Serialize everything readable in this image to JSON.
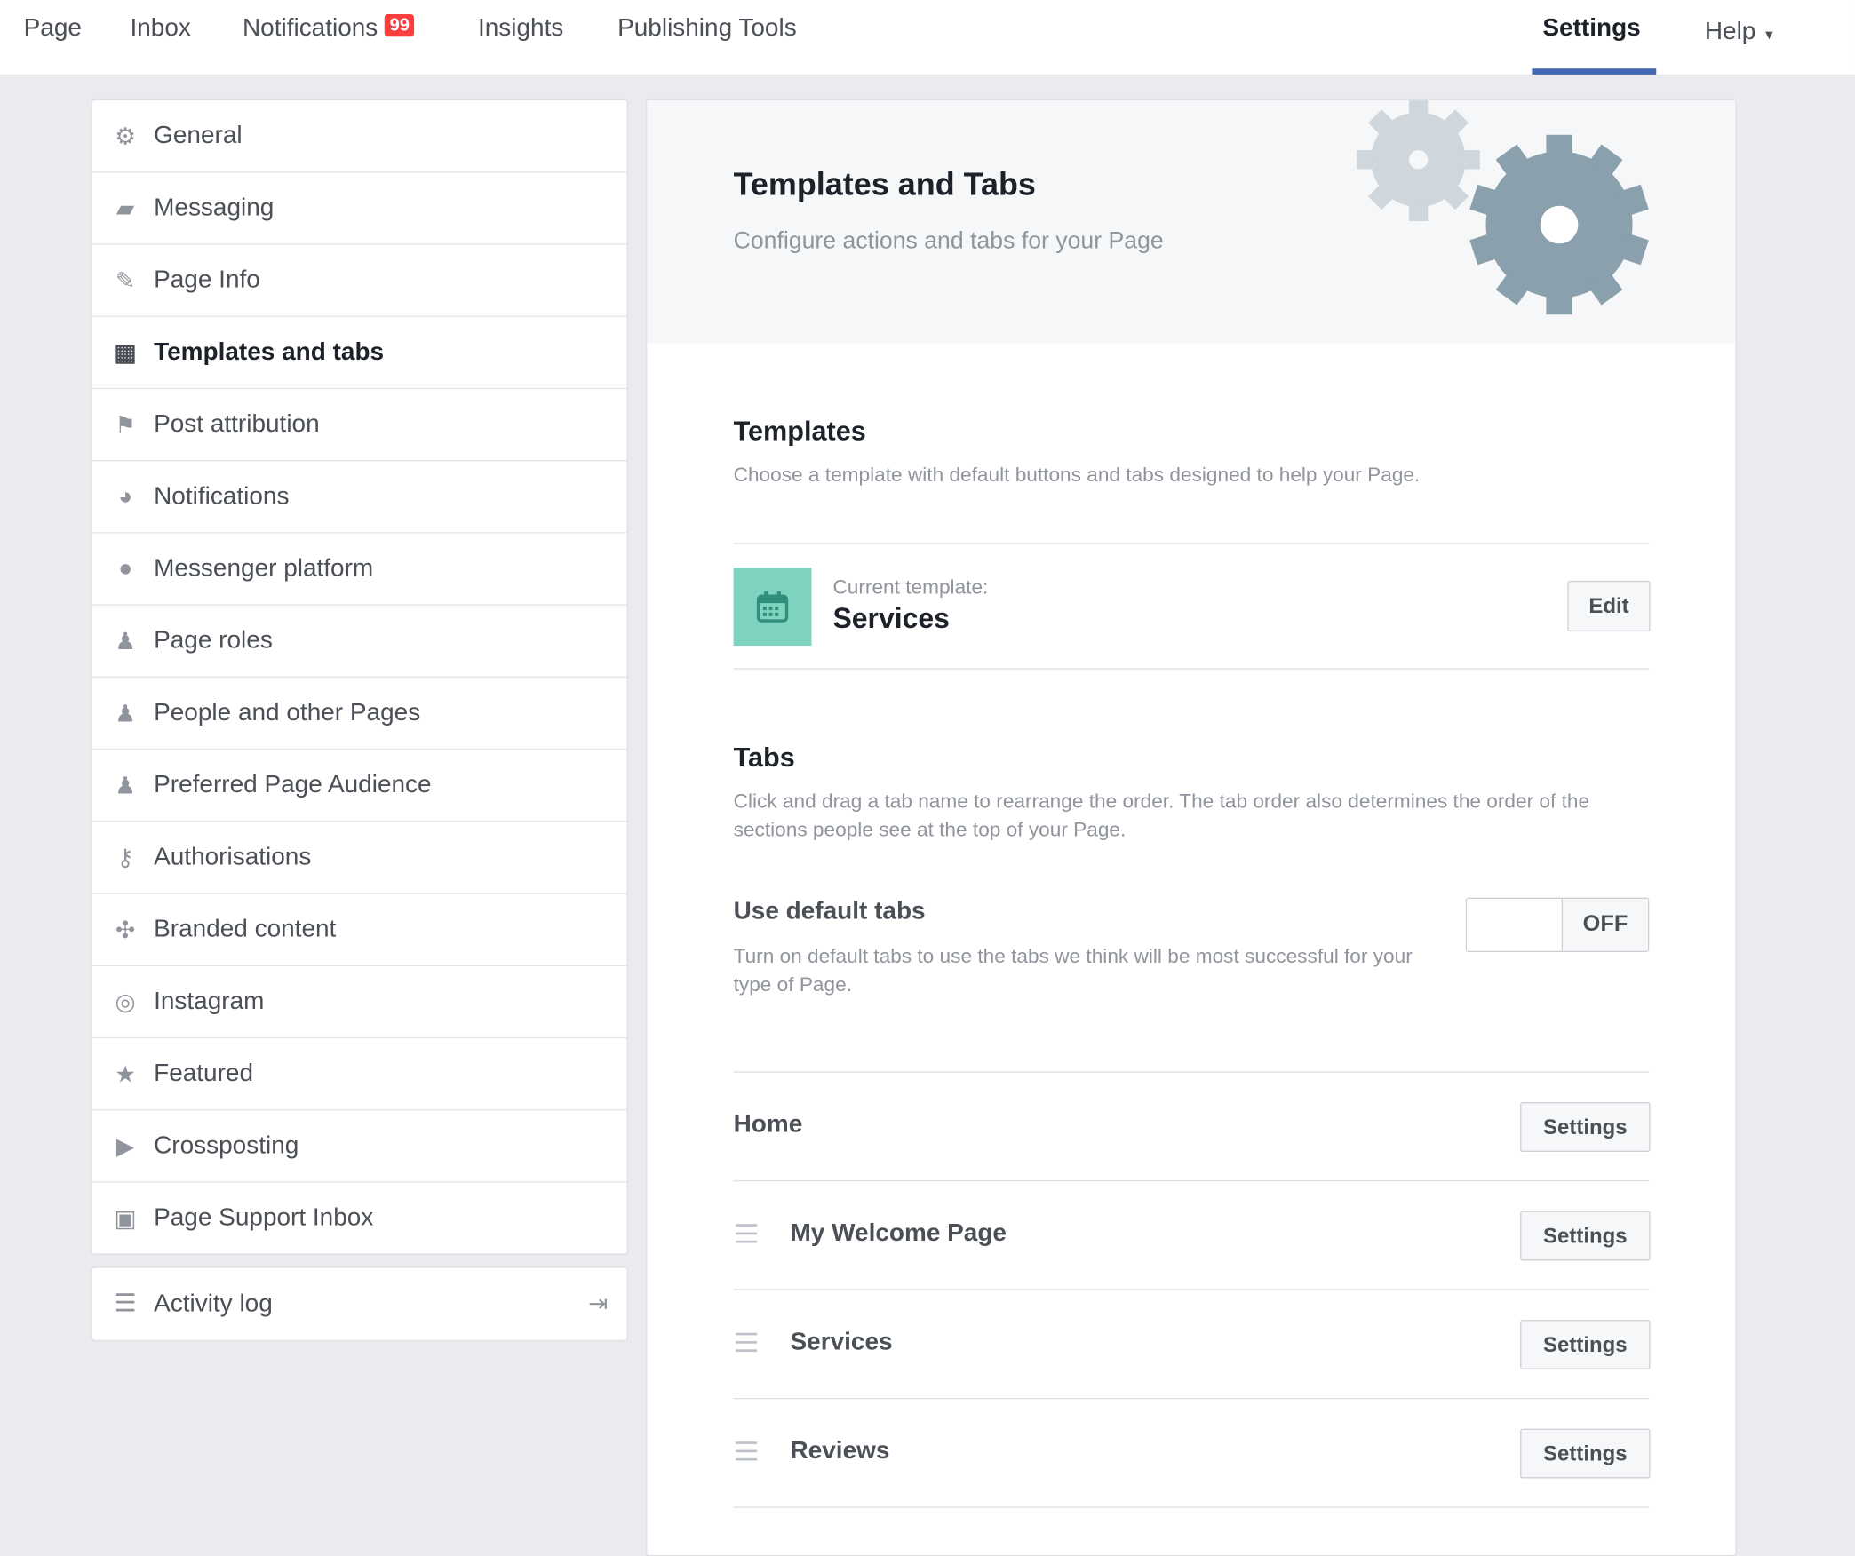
{
  "topnav": {
    "items": [
      "Page",
      "Inbox",
      "Notifications",
      "Insights",
      "Publishing Tools"
    ],
    "notifications_badge": "99",
    "settings": "Settings",
    "help": "Help",
    "accent": "#4267b2"
  },
  "sidebar": {
    "items": [
      {
        "label": "General",
        "icon": "gear-icon"
      },
      {
        "label": "Messaging",
        "icon": "messages-icon"
      },
      {
        "label": "Page Info",
        "icon": "pencil-icon"
      },
      {
        "label": "Templates and tabs",
        "icon": "grid-icon"
      },
      {
        "label": "Post attribution",
        "icon": "flag-icon"
      },
      {
        "label": "Notifications",
        "icon": "globe-icon"
      },
      {
        "label": "Messenger platform",
        "icon": "messenger-icon"
      },
      {
        "label": "Page roles",
        "icon": "person-icon"
      },
      {
        "label": "People and other Pages",
        "icon": "person-star-icon"
      },
      {
        "label": "Preferred Page Audience",
        "icon": "person-star-icon"
      },
      {
        "label": "Authorisations",
        "icon": "key-icon"
      },
      {
        "label": "Branded content",
        "icon": "handshake-icon"
      },
      {
        "label": "Instagram",
        "icon": "instagram-icon"
      },
      {
        "label": "Featured",
        "icon": "star-icon"
      },
      {
        "label": "Crossposting",
        "icon": "video-icon"
      },
      {
        "label": "Page Support Inbox",
        "icon": "facebook-icon"
      }
    ],
    "activity_log": "Activity log"
  },
  "main": {
    "title": "Templates and Tabs",
    "subtitle": "Configure actions and tabs for your Page",
    "templates": {
      "title": "Templates",
      "desc": "Choose a template with default buttons and tabs designed to help your Page.",
      "current_label": "Current template:",
      "current_value": "Services",
      "edit": "Edit",
      "tile_color": "#7ed3c0"
    },
    "tabs": {
      "title": "Tabs",
      "desc": "Click and drag a tab name to rearrange the order. The tab order also determines the order of the sections people see at the top of your Page.",
      "default_title": "Use default tabs",
      "default_desc": "Turn on default tabs to use the tabs we think will be most successful for your type of Page.",
      "toggle": "OFF",
      "rows": [
        {
          "name": "Home",
          "button": "Settings"
        },
        {
          "name": "My Welcome Page",
          "button": "Settings"
        },
        {
          "name": "Services",
          "button": "Settings"
        },
        {
          "name": "Reviews",
          "button": "Settings"
        }
      ]
    }
  }
}
